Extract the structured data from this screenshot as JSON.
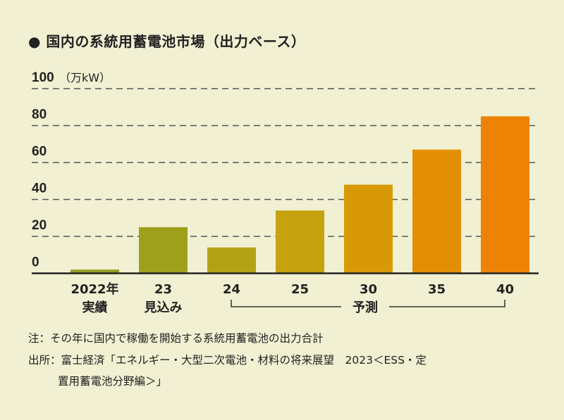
{
  "chart_data": {
    "type": "bar",
    "title": "● 国内の系統用蓄電池市場（出力ベース）",
    "ylabel": "（万kW）",
    "categories": [
      [
        "2022年",
        "実績"
      ],
      [
        "23",
        "見込み"
      ],
      [
        "24",
        ""
      ],
      [
        "25",
        ""
      ],
      [
        "30",
        ""
      ],
      [
        "35",
        ""
      ],
      [
        "40",
        ""
      ]
    ],
    "values": [
      2,
      25,
      14,
      34,
      48,
      67,
      85
    ],
    "ylim": [
      0,
      100
    ],
    "yticks": [
      0,
      20,
      40,
      60,
      80,
      100
    ],
    "grid": true,
    "bracket_label": "予測",
    "colors": [
      "#8f9d1f",
      "#9ea01c",
      "#b3a215",
      "#c5a20e",
      "#d79a06",
      "#e38f05",
      "#ee8205"
    ]
  },
  "notes": {
    "note": "注：その年に国内で稼働を開始する系統用蓄電池の出力合計",
    "source_line1": "出所：富士経済「エネルギー・大型二次電池・材料の将来展望　2023＜ESS・定",
    "source_line2": "置用蓄電池分野編＞」"
  }
}
